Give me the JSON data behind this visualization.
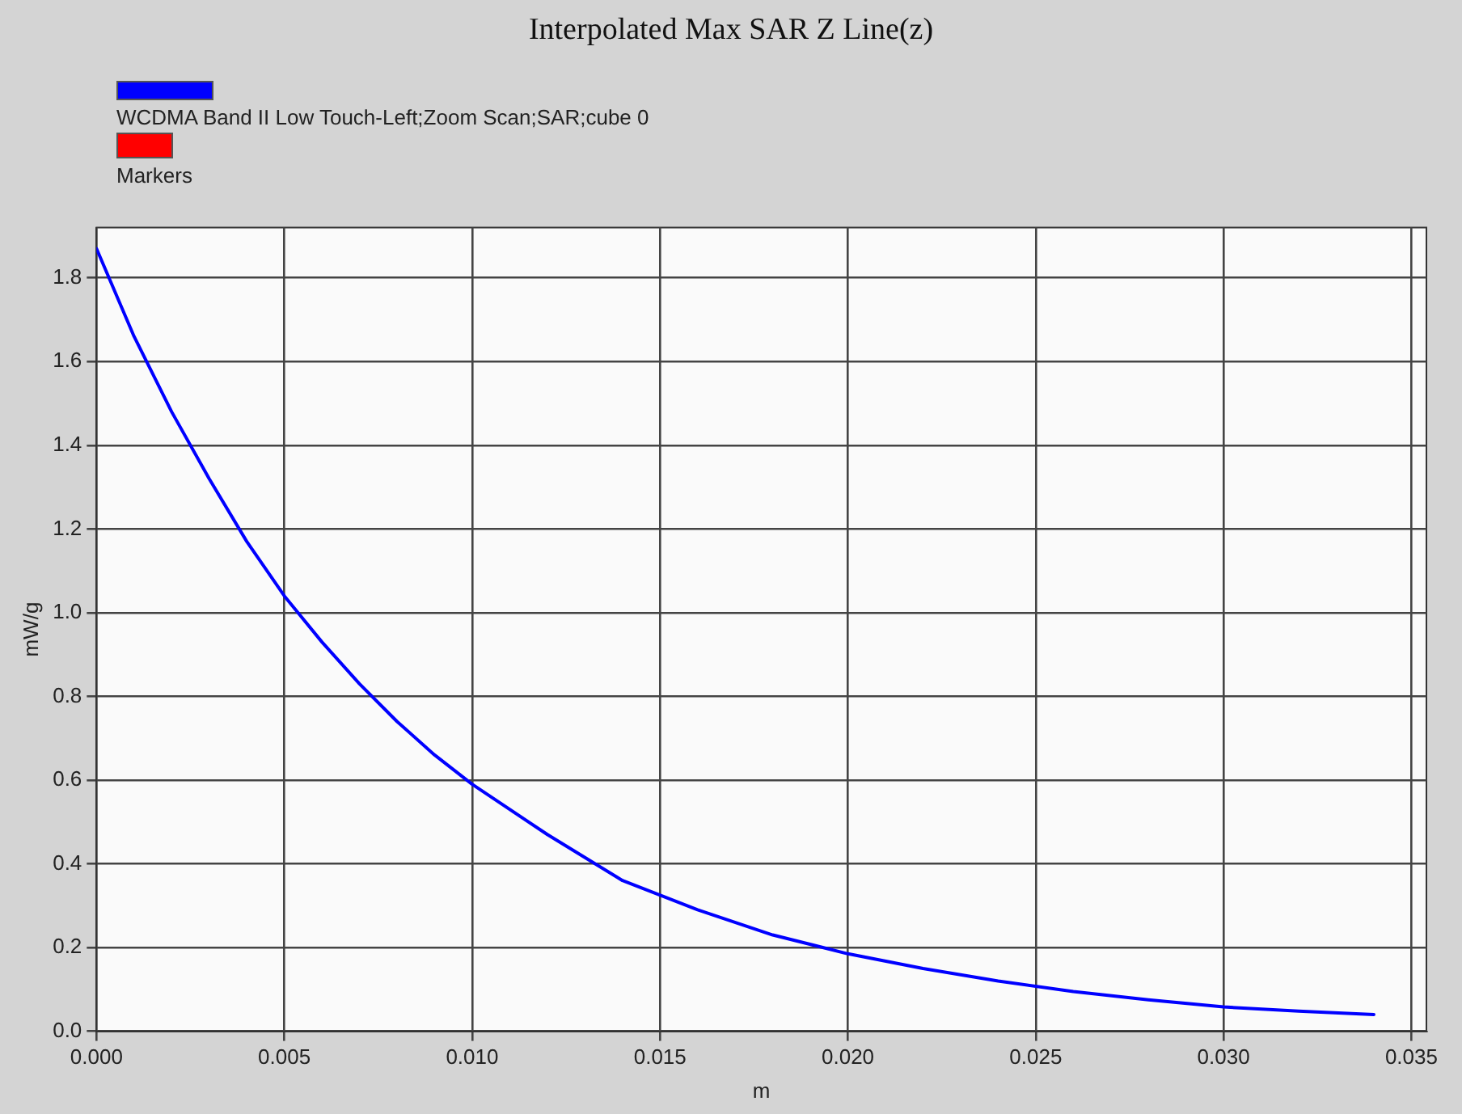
{
  "chart_data": {
    "type": "line",
    "title": "Interpolated Max SAR Z Line(z)",
    "xlabel": "m",
    "ylabel": "mW/g",
    "x": [
      0,
      0.001,
      0.002,
      0.003,
      0.004,
      0.005,
      0.006,
      0.007,
      0.008,
      0.009,
      0.01,
      0.012,
      0.014,
      0.016,
      0.018,
      0.02,
      0.022,
      0.024,
      0.026,
      0.028,
      0.03,
      0.032,
      0.034
    ],
    "series": [
      {
        "name": "WCDMA Band II Low Touch-Left;Zoom Scan;SAR;cube 0",
        "color": "#0000ff",
        "values": [
          1.87,
          1.66,
          1.48,
          1.32,
          1.17,
          1.04,
          0.93,
          0.83,
          0.74,
          0.66,
          0.59,
          0.47,
          0.36,
          0.29,
          0.23,
          0.185,
          0.15,
          0.12,
          0.095,
          0.075,
          0.058,
          0.048,
          0.04
        ]
      },
      {
        "name": "Markers",
        "color": "#ff0000",
        "type": "scatter",
        "values": [
          null,
          null,
          null,
          null,
          null,
          null,
          null,
          null,
          null,
          null,
          null,
          null,
          null,
          null,
          null,
          null,
          null,
          null,
          null,
          null,
          null,
          null,
          null
        ]
      }
    ],
    "xlim": [
      0,
      0.0354
    ],
    "xticks": [
      {
        "value": 0,
        "label": "0.000"
      },
      {
        "value": 0.005,
        "label": "0.005"
      },
      {
        "value": 0.01,
        "label": "0.010"
      },
      {
        "value": 0.015,
        "label": "0.015"
      },
      {
        "value": 0.02,
        "label": "0.020"
      },
      {
        "value": 0.025,
        "label": "0.025"
      },
      {
        "value": 0.03,
        "label": "0.030"
      },
      {
        "value": 0.035,
        "label": "0.035"
      }
    ],
    "ylim": [
      0,
      1.92
    ],
    "yticks": [
      {
        "value": 0,
        "label": "0.0"
      },
      {
        "value": 0.2,
        "label": "0.2"
      },
      {
        "value": 0.4,
        "label": "0.4"
      },
      {
        "value": 0.6,
        "label": "0.6"
      },
      {
        "value": 0.8,
        "label": "0.8"
      },
      {
        "value": 1,
        "label": "1.0"
      },
      {
        "value": 1.2,
        "label": "1.2"
      },
      {
        "value": 1.4,
        "label": "1.4"
      },
      {
        "value": 1.6,
        "label": "1.6"
      },
      {
        "value": 1.8,
        "label": "1.8"
      }
    ],
    "grid": true,
    "legend": "top left",
    "marker": "none",
    "line_style": "solid"
  }
}
